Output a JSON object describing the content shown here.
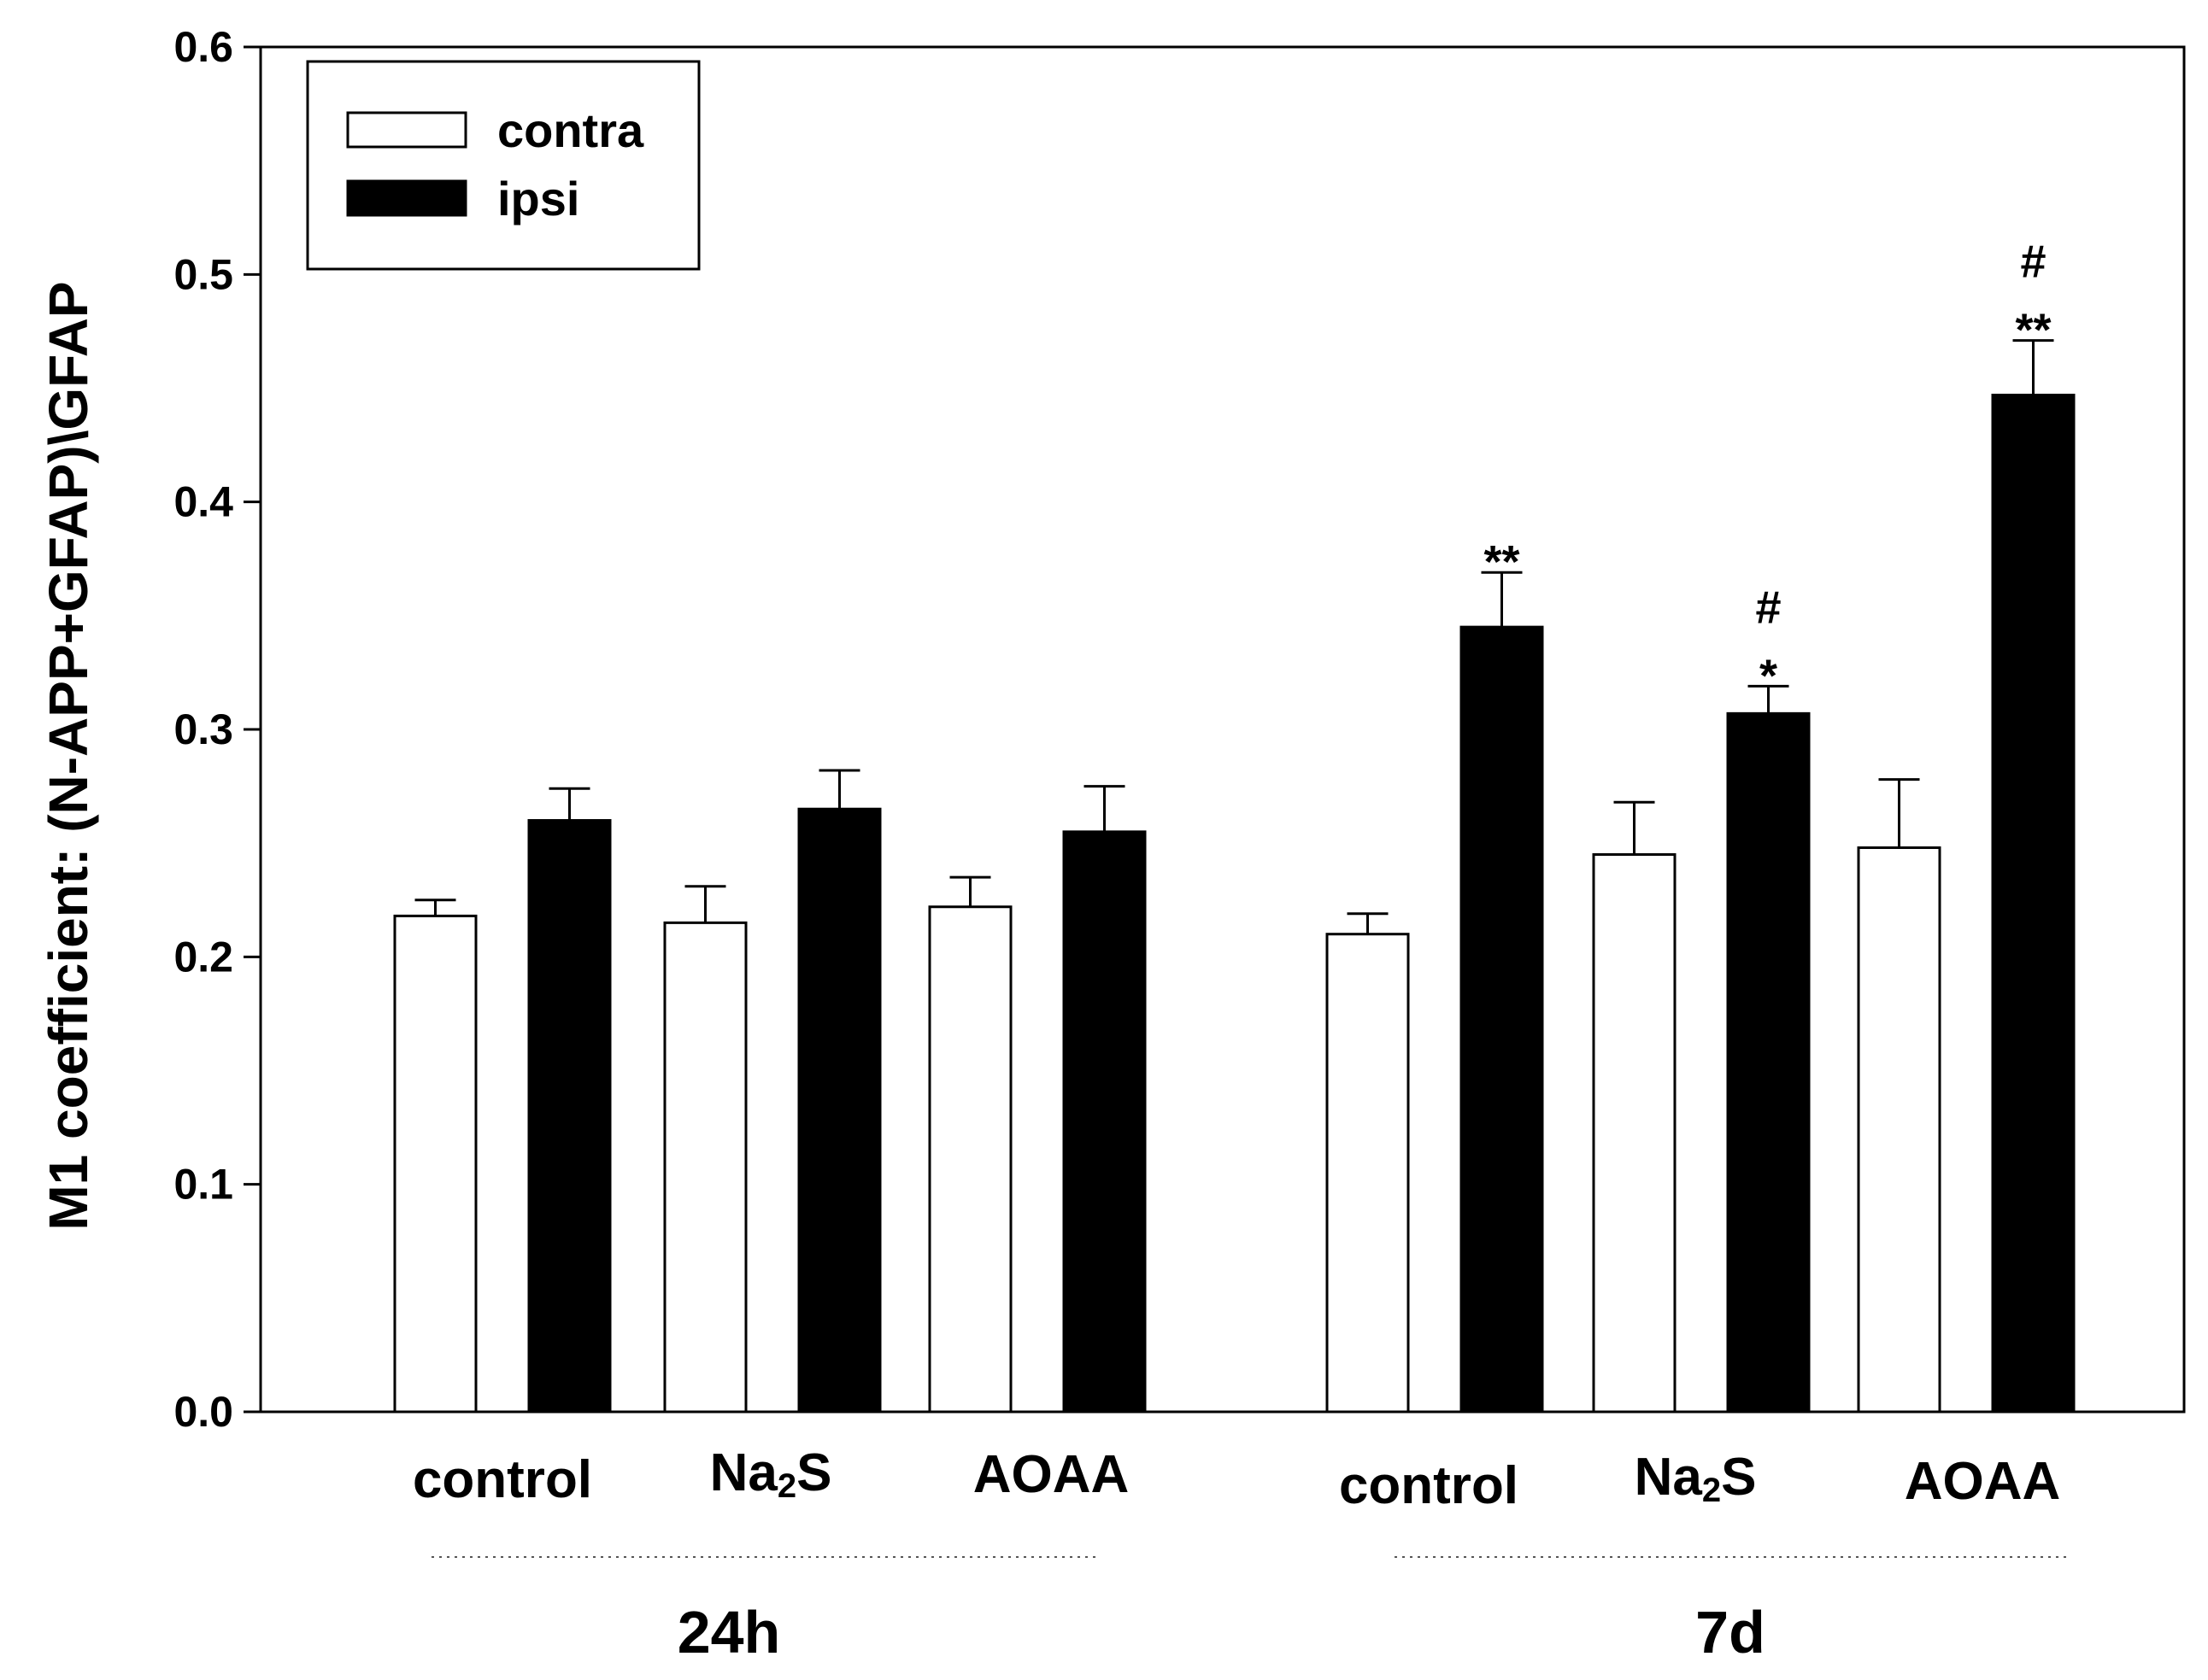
{
  "chart_data": {
    "type": "bar",
    "title": "",
    "ylabel": "M1 coefficient: (N-APP+GFAP)\\GFAP",
    "xlabel": "",
    "ylim": [
      0,
      0.6
    ],
    "yticks": [
      "0.0",
      "0.1",
      "0.2",
      "0.3",
      "0.4",
      "0.5",
      "0.6"
    ],
    "legend": {
      "position": "top-left",
      "entries": [
        "contra",
        "ipsi"
      ]
    },
    "groups": [
      {
        "label": "24h",
        "categories": [
          {
            "label_main": "control",
            "label_sub": "",
            "label_tail": "",
            "contra": {
              "value": 0.218,
              "err": 0.007
            },
            "ipsi": {
              "value": 0.26,
              "err": 0.014
            },
            "sig_contra": [],
            "sig_ipsi": []
          },
          {
            "label_main": "Na",
            "label_sub": "2",
            "label_tail": "S",
            "contra": {
              "value": 0.215,
              "err": 0.016
            },
            "ipsi": {
              "value": 0.265,
              "err": 0.017
            },
            "sig_contra": [],
            "sig_ipsi": []
          },
          {
            "label_main": "AOAA",
            "label_sub": "",
            "label_tail": "",
            "contra": {
              "value": 0.222,
              "err": 0.013
            },
            "ipsi": {
              "value": 0.255,
              "err": 0.02
            },
            "sig_contra": [],
            "sig_ipsi": []
          }
        ]
      },
      {
        "label": "7d",
        "categories": [
          {
            "label_main": "control",
            "label_sub": "",
            "label_tail": "",
            "contra": {
              "value": 0.21,
              "err": 0.009
            },
            "ipsi": {
              "value": 0.345,
              "err": 0.024
            },
            "sig_contra": [],
            "sig_ipsi": [
              "**"
            ]
          },
          {
            "label_main": "Na",
            "label_sub": "2",
            "label_tail": "S",
            "contra": {
              "value": 0.245,
              "err": 0.023
            },
            "ipsi": {
              "value": 0.307,
              "err": 0.012
            },
            "sig_contra": [],
            "sig_ipsi": [
              "*",
              "#"
            ]
          },
          {
            "label_main": "AOAA",
            "label_sub": "",
            "label_tail": "",
            "contra": {
              "value": 0.248,
              "err": 0.03
            },
            "ipsi": {
              "value": 0.447,
              "err": 0.024
            },
            "sig_contra": [],
            "sig_ipsi": [
              "**",
              "#"
            ]
          }
        ]
      }
    ],
    "colors": {
      "contra_fill": "#ffffff",
      "ipsi_fill": "#000000",
      "stroke": "#000000"
    }
  }
}
